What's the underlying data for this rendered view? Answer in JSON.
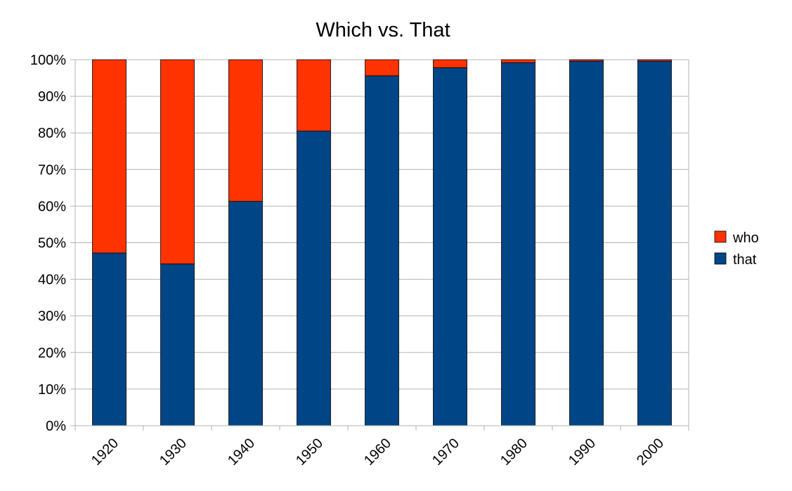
{
  "chart_data": {
    "type": "bar",
    "stacked": true,
    "title": "Which vs. That",
    "xlabel": "",
    "ylabel": "",
    "ylim": [
      0,
      100
    ],
    "ytick_labels": [
      "0%",
      "10%",
      "20%",
      "30%",
      "40%",
      "50%",
      "60%",
      "70%",
      "80%",
      "90%",
      "100%"
    ],
    "categories": [
      "1920",
      "1930",
      "1940",
      "1950",
      "1960",
      "1970",
      "1980",
      "1990",
      "2000"
    ],
    "series": [
      {
        "name": "that",
        "color": "#004586",
        "values": [
          47.2,
          44.2,
          61.3,
          80.5,
          95.6,
          97.8,
          99.2,
          99.6,
          99.6
        ]
      },
      {
        "name": "who",
        "color": "#ff3300",
        "values": [
          52.8,
          55.8,
          38.7,
          19.5,
          4.4,
          2.2,
          0.8,
          0.4,
          0.4
        ]
      }
    ],
    "legend_position": "right",
    "legend_order": [
      "who",
      "that"
    ],
    "grid": true,
    "grid_color": "#b3b3b3"
  }
}
